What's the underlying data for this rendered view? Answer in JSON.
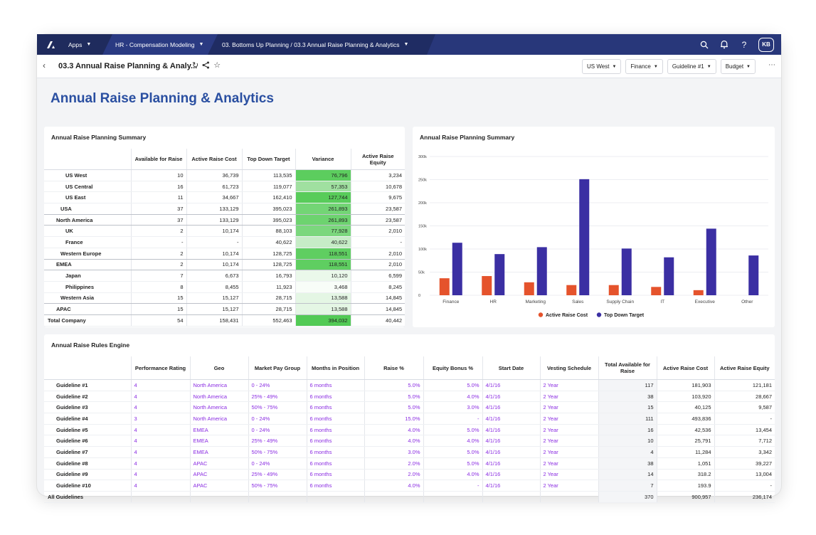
{
  "topbar": {
    "apps_label": "Apps",
    "model_label": "HR - Compensation Modeling",
    "breadcrumb": "03. Bottoms Up Planning / 03.3 Annual Raise Planning & Analytics",
    "avatar": "KB"
  },
  "pagebar": {
    "title": "03.3 Annual Raise Planning & Analy...",
    "filters": [
      "US West",
      "Finance",
      "Guideline #1",
      "Budget"
    ]
  },
  "page_heading": "Annual Raise Planning & Analytics",
  "summary": {
    "title": "Annual Raise Planning Summary",
    "columns": [
      "Available for Raise",
      "Active Raise Cost",
      "Top Down Target",
      "Variance",
      "Active Raise Equity"
    ],
    "rows": [
      {
        "label": "US West",
        "values": [
          "10",
          "36,739",
          "113,535",
          "76,796",
          "3,234"
        ],
        "variance_shade": "#5ccd5e"
      },
      {
        "label": "US Central",
        "values": [
          "16",
          "61,723",
          "119,077",
          "57,353",
          "10,678"
        ],
        "variance_shade": "#a0e0a0"
      },
      {
        "label": "US East",
        "values": [
          "11",
          "34,667",
          "162,410",
          "127,744",
          "9,675"
        ],
        "variance_shade": "#58cc5a"
      },
      {
        "label": "USA",
        "values": [
          "37",
          "133,129",
          "395,023",
          "261,893",
          "23,587"
        ],
        "variance_shade": "#73d575"
      },
      {
        "label": "North America",
        "values": [
          "37",
          "133,129",
          "395,023",
          "261,893",
          "23,587"
        ],
        "variance_shade": "#6dd36f"
      },
      {
        "label": "UK",
        "values": [
          "2",
          "10,174",
          "88,103",
          "77,928",
          "2,010"
        ],
        "variance_shade": "#7bd77d"
      },
      {
        "label": "France",
        "values": [
          "-",
          "-",
          "40,622",
          "40,622",
          "-"
        ],
        "variance_shade": "#c6ecc6"
      },
      {
        "label": "Western Europe",
        "values": [
          "2",
          "10,174",
          "128,725",
          "118,551",
          "2,010"
        ],
        "variance_shade": "#5fce61"
      },
      {
        "label": "EMEA",
        "values": [
          "2",
          "10,174",
          "128,725",
          "118,551",
          "2,010"
        ],
        "variance_shade": "#5fce61"
      },
      {
        "label": "Japan",
        "values": [
          "7",
          "6,673",
          "16,793",
          "10,120",
          "6,599"
        ],
        "variance_shade": "#eaf8ea"
      },
      {
        "label": "Philippines",
        "values": [
          "8",
          "8,455",
          "11,923",
          "3,468",
          "8,245"
        ],
        "variance_shade": "#f8fdf8"
      },
      {
        "label": "Western Asia",
        "values": [
          "15",
          "15,127",
          "28,715",
          "13,588",
          "14,845"
        ],
        "variance_shade": "#e4f6e4"
      },
      {
        "label": "APAC",
        "values": [
          "15",
          "15,127",
          "28,715",
          "13,588",
          "14,845"
        ],
        "variance_shade": "#e4f6e4"
      },
      {
        "label": "Total Company",
        "values": [
          "54",
          "158,431",
          "552,463",
          "394,032",
          "40,442"
        ],
        "variance_shade": "#52ca55"
      }
    ]
  },
  "chart": {
    "title": "Annual Raise Planning Summary",
    "colors": {
      "Active Raise Cost": "#e5532c",
      "Top Down Target": "#3b2fa3"
    }
  },
  "chart_data": {
    "type": "bar",
    "categories": [
      "Finance",
      "HR",
      "Marketing",
      "Sales",
      "Supply Chain",
      "IT",
      "Executive",
      "Other"
    ],
    "series": [
      {
        "name": "Active Raise Cost",
        "values": [
          36739,
          41500,
          28000,
          22000,
          22000,
          18000,
          11000,
          0
        ]
      },
      {
        "name": "Top Down Target",
        "values": [
          113535,
          89000,
          104000,
          251000,
          101000,
          82000,
          144000,
          86000
        ]
      }
    ],
    "y_ticks": [
      "300k",
      "250k",
      "200k",
      "150k",
      "100k",
      "50k",
      "0"
    ],
    "ylim": [
      0,
      300000
    ],
    "legend_position": "bottom-center"
  },
  "rules": {
    "title": "Annual Raise Rules Engine",
    "columns": [
      "Performance Rating",
      "Geo",
      "Market Pay Group",
      "Months in Position",
      "Raise %",
      "Equity Bonus %",
      "Start Date",
      "Vesting Schedule",
      "Total Available for Raise",
      "Active Raise Cost",
      "Active Raise Equity"
    ],
    "rows": [
      {
        "label": "Guideline #1",
        "values": [
          "4",
          "North America",
          "0 - 24%",
          "6 months",
          "5.0%",
          "5.0%",
          "4/1/16",
          "2 Year",
          "117",
          "181,903",
          "121,181"
        ]
      },
      {
        "label": "Guideline #2",
        "values": [
          "4",
          "North America",
          "25% - 49%",
          "6 months",
          "5.0%",
          "4.0%",
          "4/1/16",
          "2 Year",
          "38",
          "103,920",
          "28,667"
        ]
      },
      {
        "label": "Guideline #3",
        "values": [
          "4",
          "North America",
          "50% - 75%",
          "6 months",
          "5.0%",
          "3.0%",
          "4/1/16",
          "2 Year",
          "15",
          "40,125",
          "9,587"
        ]
      },
      {
        "label": "Guideline #4",
        "values": [
          "3",
          "North America",
          "0 - 24%",
          "6 months",
          "15.0%",
          "-",
          "4/1/16",
          "2 Year",
          "111",
          "493,836",
          "-"
        ]
      },
      {
        "label": "Guideline #5",
        "values": [
          "4",
          "EMEA",
          "0 - 24%",
          "6 months",
          "4.0%",
          "5.0%",
          "4/1/16",
          "2 Year",
          "16",
          "42,536",
          "13,454"
        ]
      },
      {
        "label": "Guideline #6",
        "values": [
          "4",
          "EMEA",
          "25% - 49%",
          "6 months",
          "4.0%",
          "4.0%",
          "4/1/16",
          "2 Year",
          "10",
          "25,791",
          "7,712"
        ]
      },
      {
        "label": "Guideline #7",
        "values": [
          "4",
          "EMEA",
          "50% - 75%",
          "6 months",
          "3.0%",
          "5.0%",
          "4/1/16",
          "2 Year",
          "4",
          "11,284",
          "3,342"
        ]
      },
      {
        "label": "Guideline #8",
        "values": [
          "4",
          "APAC",
          "0 - 24%",
          "6 months",
          "2.0%",
          "5.0%",
          "4/1/16",
          "2 Year",
          "38",
          "1,051",
          "39,227"
        ]
      },
      {
        "label": "Guideline #9",
        "values": [
          "4",
          "APAC",
          "25% - 49%",
          "6 months",
          "2.0%",
          "4.0%",
          "4/1/16",
          "2 Year",
          "14",
          "318.2",
          "13,004"
        ]
      },
      {
        "label": "Guideline #10",
        "values": [
          "4",
          "APAC",
          "50% - 75%",
          "6 months",
          "4.0%",
          "-",
          "4/1/16",
          "2 Year",
          "7",
          "193.9",
          "-"
        ]
      }
    ],
    "total": {
      "label": "All Guidelines",
      "values": [
        "",
        "",
        "",
        "",
        "",
        "",
        "",
        "",
        "370",
        "900,957",
        "236,174"
      ]
    }
  }
}
